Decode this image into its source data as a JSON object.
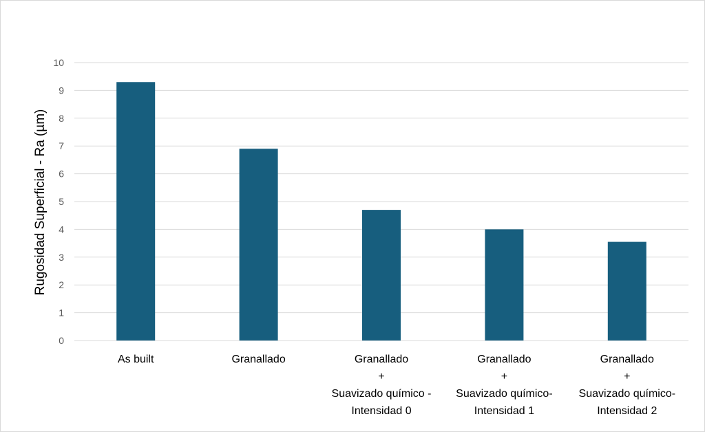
{
  "chart_data": {
    "type": "bar",
    "categories": [
      [
        "As built"
      ],
      [
        "Granallado"
      ],
      [
        "Granallado",
        "+",
        "Suavizado químico -",
        "Intensidad 0"
      ],
      [
        "Granallado",
        "+",
        "Suavizado químico-",
        "Intensidad 1"
      ],
      [
        "Granallado",
        "+",
        "Suavizado químico-",
        "Intensidad 2"
      ]
    ],
    "values": [
      9.3,
      6.9,
      4.7,
      4.0,
      3.55
    ],
    "ylabel": "Rugosidad Superficial  - Ra (µm)",
    "ylim": [
      0,
      10
    ],
    "yticks": [
      0,
      1,
      2,
      3,
      4,
      5,
      6,
      7,
      8,
      9,
      10
    ],
    "grid": true,
    "bar_color": "#175e7e",
    "grid_color": "#d9d9d9"
  }
}
